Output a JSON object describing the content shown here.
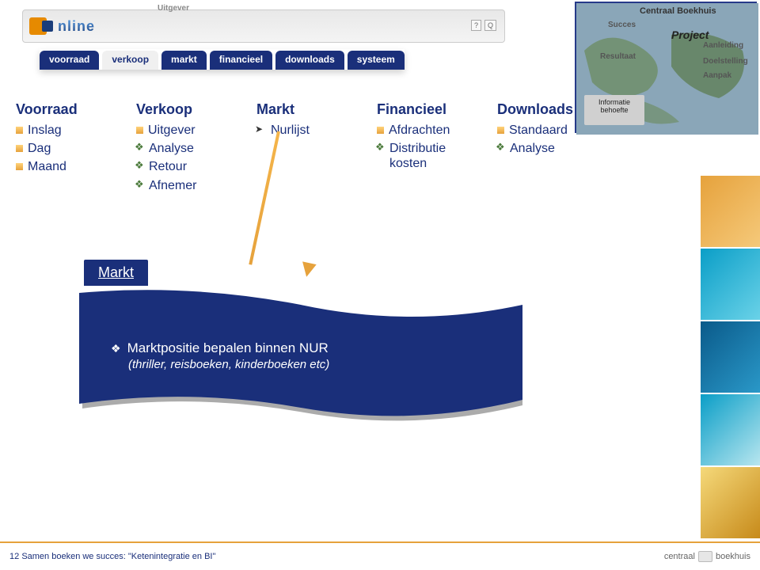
{
  "header": {
    "logo_text": "nline",
    "uitgever_label": "Uitgever",
    "help1": "?",
    "help2": "Q"
  },
  "worldmap": {
    "l1": "Centraal Boekhuis",
    "l2": "Succes",
    "l3": "Project",
    "l4": "Aanleiding",
    "l5": "Resultaat",
    "l6": "Doelstelling",
    "l7": "Aanpak",
    "infobox_l1": "Informatie",
    "infobox_l2": "behoefte"
  },
  "tabs": [
    {
      "label": "voorraad",
      "active": false
    },
    {
      "label": "verkoop",
      "active": true
    },
    {
      "label": "markt",
      "active": false
    },
    {
      "label": "financieel",
      "active": false
    },
    {
      "label": "downloads",
      "active": false
    },
    {
      "label": "systeem",
      "active": false
    }
  ],
  "columns": [
    {
      "title": "Voorraad",
      "items": [
        {
          "bullet": "sq",
          "text": "Inslag"
        },
        {
          "bullet": "sq",
          "text": "Dag"
        },
        {
          "bullet": "sq",
          "text": "Maand"
        }
      ]
    },
    {
      "title": "Verkoop",
      "items": [
        {
          "bullet": "sq",
          "text": "Uitgever"
        },
        {
          "bullet": "dia",
          "text": "Analyse"
        },
        {
          "bullet": "dia",
          "text": "Retour"
        },
        {
          "bullet": "dia",
          "text": "Afnemer"
        }
      ]
    },
    {
      "title": "Markt",
      "items": [
        {
          "bullet": "arrow",
          "text": "Nurlijst"
        }
      ]
    },
    {
      "title": "Financieel",
      "items": [
        {
          "bullet": "sq",
          "text": "Afdrachten"
        },
        {
          "bullet": "dia",
          "text": "Distributie kosten"
        }
      ]
    },
    {
      "title": "Downloads",
      "items": [
        {
          "bullet": "sq",
          "text": "Standaard"
        },
        {
          "bullet": "dia",
          "text": "Analyse"
        }
      ]
    }
  ],
  "detail": {
    "title": "Markt",
    "line1": "Marktpositie bepalen binnen NUR",
    "sub": "(thriller, reisboeken, kinderboeken etc)",
    "bg_color": "#1a2f7a"
  },
  "footer": {
    "slide_no": "12",
    "text": "Samen boeken we succes: \"Ketenintegratie en BI\"",
    "logo_left": "centraal",
    "logo_right": "boekhuis"
  },
  "colors": {
    "navy": "#1a2f7a",
    "orange": "#e6a23c",
    "wave_shadow": "#a0a0a0"
  }
}
